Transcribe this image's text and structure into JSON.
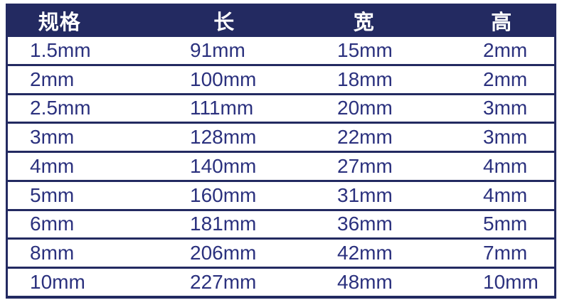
{
  "colors": {
    "header_background": "#232A61",
    "header_text": "#FFFFFF",
    "body_text": "#2B317E",
    "border": "#232A61",
    "page_background": "#FFFFFF"
  },
  "chart_data": {
    "type": "table",
    "title": "",
    "columns": [
      "规格",
      "长",
      "宽",
      "高"
    ],
    "rows": [
      [
        "1.5mm",
        "91mm",
        "15mm",
        "2mm"
      ],
      [
        "2mm",
        "100mm",
        "18mm",
        "2mm"
      ],
      [
        "2.5mm",
        "111mm",
        "20mm",
        "3mm"
      ],
      [
        "3mm",
        "128mm",
        "22mm",
        "3mm"
      ],
      [
        "4mm",
        "140mm",
        "27mm",
        "4mm"
      ],
      [
        "5mm",
        "160mm",
        "31mm",
        "4mm"
      ],
      [
        "6mm",
        "181mm",
        "36mm",
        "5mm"
      ],
      [
        "8mm",
        "206mm",
        "42mm",
        "7mm"
      ],
      [
        "10mm",
        "227mm",
        "48mm",
        "10mm"
      ]
    ]
  }
}
